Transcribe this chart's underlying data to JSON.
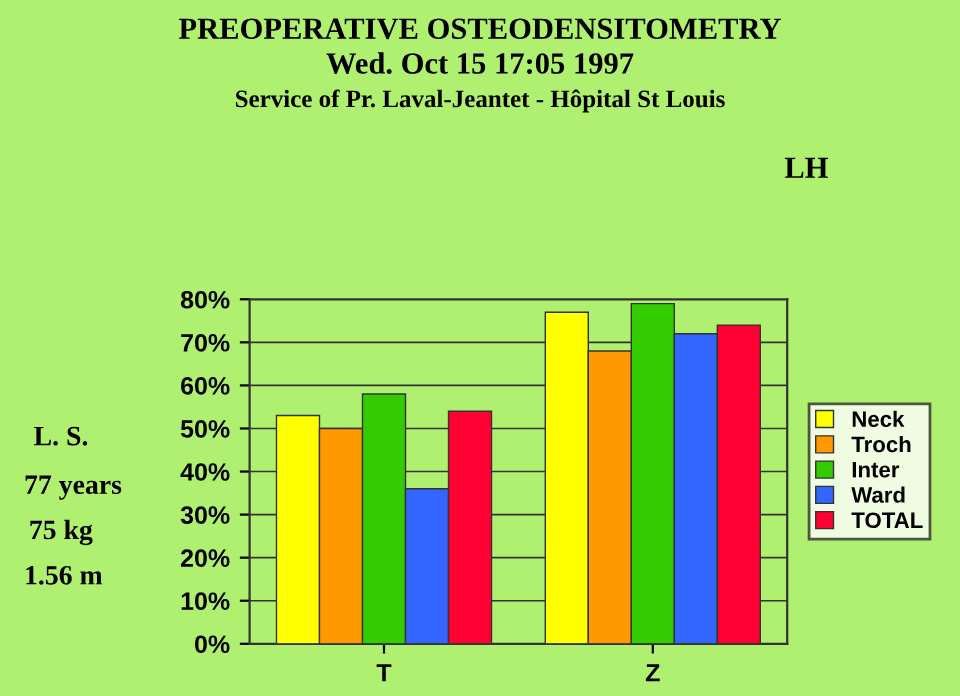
{
  "chart_data": {
    "type": "bar",
    "title": "PREOPERATIVE OSTEODENSITOMETRY",
    "subtitle": "Wed. Oct 15 17:05 1997",
    "annotations": [
      "Service of Pr. Laval-Jeantet - Hôpital St Louis",
      "LH",
      "L. S.",
      "77 years",
      "75 kg",
      "1.56 m"
    ],
    "categories": [
      "T",
      "Z"
    ],
    "series": [
      {
        "name": "Neck",
        "color": "#ffff00",
        "values": [
          53,
          77
        ]
      },
      {
        "name": "Troch",
        "color": "#ff9900",
        "values": [
          50,
          68
        ]
      },
      {
        "name": "Inter",
        "color": "#33cc00",
        "values": [
          58,
          79
        ]
      },
      {
        "name": "Ward",
        "color": "#3366ff",
        "values": [
          36,
          72
        ]
      },
      {
        "name": "TOTAL",
        "color": "#ff0033",
        "values": [
          54,
          74
        ]
      }
    ],
    "ylim": [
      0,
      80
    ],
    "yticks": [
      {
        "value": 0,
        "label": "0%"
      },
      {
        "value": 10,
        "label": "10%"
      },
      {
        "value": 20,
        "label": "20%"
      },
      {
        "value": 30,
        "label": "30%"
      },
      {
        "value": 40,
        "label": "40%"
      },
      {
        "value": 50,
        "label": "50%"
      },
      {
        "value": 60,
        "label": "60%"
      },
      {
        "value": 70,
        "label": "70%"
      },
      {
        "value": 80,
        "label": "80%"
      }
    ],
    "grid": "y",
    "legend": "right"
  }
}
